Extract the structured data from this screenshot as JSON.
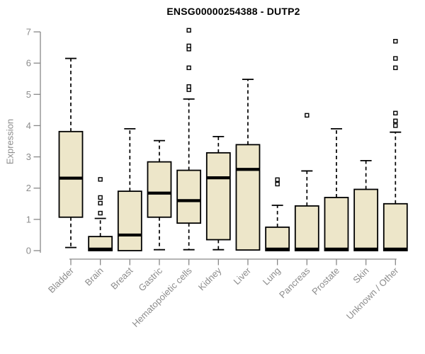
{
  "chart_data": {
    "type": "boxplot",
    "title": "ENSG00000254388 - DUTP2",
    "ylabel": "Expression",
    "xlabel": "",
    "ylim": [
      0,
      7
    ],
    "yticks": [
      0,
      1,
      2,
      3,
      4,
      5,
      6,
      7
    ],
    "grid": false,
    "legend": false,
    "categories": [
      "Bladder",
      "Brain",
      "Breast",
      "Gastric",
      "Hematopoietic cells",
      "Kidney",
      "Liver",
      "Lung",
      "Pancreas",
      "Prostate",
      "Skin",
      "Unknown / Other"
    ],
    "boxes": [
      {
        "category": "Bladder",
        "whisker_low": 0.1,
        "q1": 1.07,
        "median": 2.32,
        "q3": 3.81,
        "whisker_high": 6.15,
        "outliers": []
      },
      {
        "category": "Brain",
        "whisker_low": 0,
        "q1": 0,
        "median": 0.05,
        "q3": 0.45,
        "whisker_high": 1.03,
        "outliers": [
          1.2,
          1.52,
          1.7,
          2.28
        ]
      },
      {
        "category": "Breast",
        "whisker_low": 0,
        "q1": 0,
        "median": 0.5,
        "q3": 1.9,
        "whisker_high": 3.9,
        "outliers": []
      },
      {
        "category": "Gastric",
        "whisker_low": 0.03,
        "q1": 1.07,
        "median": 1.84,
        "q3": 2.84,
        "whisker_high": 3.52,
        "outliers": []
      },
      {
        "category": "Hematopoietic cells",
        "whisker_low": 0.03,
        "q1": 0.88,
        "median": 1.6,
        "q3": 2.57,
        "whisker_high": 4.85,
        "outliers": [
          5.15,
          5.25,
          5.85,
          6.45,
          6.55,
          7.05
        ]
      },
      {
        "category": "Kidney",
        "whisker_low": 0.03,
        "q1": 0.35,
        "median": 2.33,
        "q3": 3.13,
        "whisker_high": 3.65,
        "outliers": []
      },
      {
        "category": "Liver",
        "whisker_low": 0,
        "q1": 0.02,
        "median": 2.6,
        "q3": 3.39,
        "whisker_high": 5.48,
        "outliers": []
      },
      {
        "category": "Lung",
        "whisker_low": 0,
        "q1": 0,
        "median": 0.05,
        "q3": 0.75,
        "whisker_high": 1.45,
        "outliers": [
          2.13,
          2.27
        ]
      },
      {
        "category": "Pancreas",
        "whisker_low": 0,
        "q1": 0,
        "median": 0.05,
        "q3": 1.43,
        "whisker_high": 2.55,
        "outliers": [
          4.33
        ]
      },
      {
        "category": "Prostate",
        "whisker_low": 0,
        "q1": 0,
        "median": 0.05,
        "q3": 1.7,
        "whisker_high": 3.9,
        "outliers": []
      },
      {
        "category": "Skin",
        "whisker_low": 0,
        "q1": 0,
        "median": 0.05,
        "q3": 1.96,
        "whisker_high": 2.88,
        "outliers": []
      },
      {
        "category": "Unknown / Other",
        "whisker_low": 0,
        "q1": 0,
        "median": 0.05,
        "q3": 1.5,
        "whisker_high": 3.79,
        "outliers": [
          4.0,
          4.15,
          4.4,
          5.85,
          6.15,
          6.7
        ]
      }
    ],
    "colors": {
      "box_fill": "#EDE6C9",
      "box_border": "#000000",
      "median": "#000000",
      "whisker": "#000000",
      "axis": "#888888",
      "tick_label": "#8c8c8c",
      "title": "#000000",
      "background": "#ffffff"
    }
  }
}
